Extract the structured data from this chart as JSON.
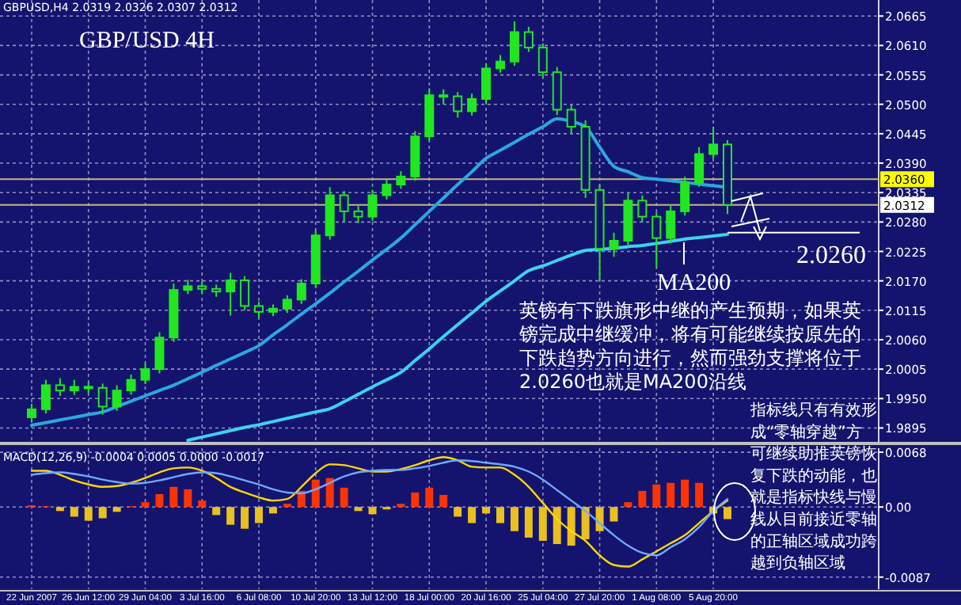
{
  "chart_data": [
    {
      "type": "candlestick",
      "title": "GBP/USD 4H",
      "subtitle": "GBPUSD,H4 2.0319 2.0326 2.0307 2.0312",
      "color": "#22e622",
      "tick_labels": "y",
      "grid": true,
      "categories": [
        null,
        null,
        null,
        null,
        null,
        null,
        null,
        null,
        null,
        null,
        null,
        null,
        null,
        null,
        null,
        null,
        null,
        null,
        null,
        null,
        null,
        null,
        null,
        null,
        null,
        null,
        null,
        null,
        null,
        null,
        null,
        null,
        null,
        null,
        null,
        null,
        null,
        null,
        null,
        null,
        null,
        null,
        null,
        null,
        null,
        null,
        null,
        null,
        null,
        null
      ],
      "ohlc": [
        [
          1.9915,
          1.994,
          1.9905,
          1.993
        ],
        [
          1.993,
          1.9985,
          1.9922,
          1.9975
        ],
        [
          1.9975,
          1.9988,
          1.9955,
          1.9965
        ],
        [
          1.9965,
          1.9985,
          1.9957,
          1.9972
        ],
        [
          1.9972,
          1.998,
          1.996,
          1.997
        ],
        [
          1.997,
          1.9978,
          1.992,
          1.9935
        ],
        [
          1.9935,
          1.9975,
          1.9927,
          1.9965
        ],
        [
          1.9965,
          1.9995,
          1.9957,
          1.9985
        ],
        [
          1.9985,
          2.0015,
          1.9977,
          2.0005
        ],
        [
          2.0005,
          2.0074,
          1.9997,
          2.0064
        ],
        [
          2.0064,
          2.0165,
          2.0056,
          2.0153
        ],
        [
          2.0153,
          2.0172,
          2.0145,
          2.016
        ],
        [
          2.016,
          2.0168,
          2.0147,
          2.0155
        ],
        [
          2.0155,
          2.0163,
          2.014,
          2.015
        ],
        [
          2.015,
          2.0185,
          2.0105,
          2.0171
        ],
        [
          2.0171,
          2.0179,
          2.0115,
          2.0123
        ],
        [
          2.0123,
          2.0131,
          2.01,
          2.0112
        ],
        [
          2.0112,
          2.0126,
          2.0104,
          2.0118
        ],
        [
          2.0118,
          2.0143,
          2.011,
          2.0135
        ],
        [
          2.0135,
          2.0173,
          2.0127,
          2.0165
        ],
        [
          2.0165,
          2.0265,
          2.0157,
          2.0255
        ],
        [
          2.0255,
          2.0345,
          2.0247,
          2.033
        ],
        [
          2.033,
          2.0338,
          2.028,
          2.03
        ],
        [
          2.03,
          2.031,
          2.0278,
          2.029
        ],
        [
          2.029,
          2.034,
          2.0282,
          2.033
        ],
        [
          2.033,
          2.036,
          2.0322,
          2.035
        ],
        [
          2.035,
          2.0375,
          2.0342,
          2.0365
        ],
        [
          2.0365,
          2.045,
          2.0357,
          2.044
        ],
        [
          2.044,
          2.053,
          2.0432,
          2.0517
        ],
        [
          2.0517,
          2.0528,
          2.05,
          2.0515
        ],
        [
          2.0515,
          2.0523,
          2.0475,
          2.0487
        ],
        [
          2.0487,
          2.052,
          2.0479,
          2.051
        ],
        [
          2.051,
          2.0577,
          2.0502,
          2.0567
        ],
        [
          2.0567,
          2.0592,
          2.0559,
          2.058
        ],
        [
          2.058,
          2.0655,
          2.0572,
          2.0635
        ],
        [
          2.0635,
          2.0645,
          2.0598,
          2.0606
        ],
        [
          2.0606,
          2.0614,
          2.055,
          2.056
        ],
        [
          2.056,
          2.057,
          2.048,
          2.049
        ],
        [
          2.049,
          2.05,
          2.0445,
          2.0458
        ],
        [
          2.0458,
          2.047,
          2.0325,
          2.034
        ],
        [
          2.034,
          2.035,
          2.017,
          2.023
        ],
        [
          2.023,
          2.026,
          2.0215,
          2.0245
        ],
        [
          2.0245,
          2.0335,
          2.0237,
          2.032
        ],
        [
          2.032,
          2.033,
          2.028,
          2.029
        ],
        [
          2.029,
          2.0298,
          2.0195,
          2.025
        ],
        [
          2.025,
          2.031,
          2.0242,
          2.03
        ],
        [
          2.03,
          2.0365,
          2.0292,
          2.0354
        ],
        [
          2.0354,
          2.042,
          2.0346,
          2.0407
        ],
        [
          2.0407,
          2.0458,
          2.0399,
          2.0425
        ],
        [
          2.0425,
          2.0433,
          2.0295,
          2.0312
        ]
      ],
      "series": [
        {
          "type": "line",
          "color": "#2aa8e0",
          "values": [
            1.99,
            1.9905,
            1.991,
            1.9915,
            1.992,
            1.9925,
            1.9935,
            1.9945,
            1.9955,
            1.9965,
            1.9975,
            1.9987,
            1.9999,
            2.0012,
            2.0024,
            2.0036,
            2.0049,
            2.0069,
            2.0088,
            2.0108,
            2.0127,
            2.0147,
            2.0168,
            2.0188,
            2.0209,
            2.0229,
            2.025,
            2.0275,
            2.03,
            2.0325,
            2.035,
            2.0374,
            2.0399,
            2.0414,
            2.0429,
            2.0444,
            2.0458,
            2.0473,
            2.0468,
            2.0458,
            2.042,
            2.0384,
            2.0374,
            2.0363,
            2.036,
            2.0357,
            2.0354,
            2.0351,
            2.0348,
            2.0345
          ]
        },
        {
          "type": "line",
          "color": "#3cd2f0",
          "values": [
            null,
            null,
            null,
            null,
            null,
            null,
            null,
            null,
            null,
            null,
            null,
            1.9872,
            1.9878,
            1.9884,
            1.989,
            1.9896,
            1.9901,
            1.9907,
            1.9913,
            1.9919,
            1.9925,
            1.9931,
            1.9944,
            1.9958,
            1.9972,
            1.9985,
            1.9999,
            2.0021,
            2.0043,
            2.0066,
            2.0088,
            2.011,
            2.0132,
            2.0151,
            2.017,
            2.0189,
            2.0198,
            2.0208,
            2.0218,
            2.0227,
            2.0229,
            2.0231,
            2.0234,
            2.0236,
            2.024,
            2.0244,
            2.0248,
            2.0251,
            2.0254,
            2.0257
          ]
        }
      ],
      "ylim": [
        1.9869,
        2.0695
      ],
      "yticks": [
        2.0665,
        {
          "value": 2.061,
          "label": "2.0610"
        },
        2.0555,
        {
          "value": 2.05,
          "label": "2.0500"
        },
        2.0445,
        {
          "value": 2.039,
          "label": "2.0390"
        },
        2.0335,
        {
          "value": 2.028,
          "label": "2.0280"
        },
        2.0225,
        {
          "value": 2.017,
          "label": "2.0170"
        },
        2.0115,
        {
          "value": 2.006,
          "label": "2.0060"
        },
        2.0005,
        {
          "value": 1.995,
          "label": "1.9950"
        },
        1.9895
      ],
      "ref_lines": [
        {
          "axis": "y",
          "value": 2.036,
          "label": "2.0360",
          "color": "#c8b482"
        },
        {
          "axis": "y",
          "value": 2.0312,
          "label": "2.0312",
          "color": "#c8b482"
        },
        {
          "axis": "y",
          "value": 2.026,
          "label": "2.0260",
          "color": "#ffffff"
        }
      ],
      "annotations": [
        "MA200",
        "英镑有下跌旗形中继的产生预期，如果英镑完成中继缓冲，将有可能继续按原先的下跌趋势方向进行，然而强劲支撑将位于2.0260也就是MA200沿线",
        "指标线只有有效形成“零轴穿越”方可继续助推英镑恢复下跌的动能，也就是指标快线与慢线从目前接近零轴的正轴区域成功跨越到负轴区域"
      ]
    },
    {
      "type": "bar",
      "title": "MACD(12,26,9) -0.0004 0.0005 0.0000 -0.0017",
      "grid": true,
      "categories": [
        "22 Jun 2007",
        null,
        null,
        null,
        "26 Jun 12:00",
        null,
        null,
        null,
        "29 Jun 04:00",
        null,
        null,
        null,
        "3 Jul 16:00",
        null,
        null,
        null,
        "6 Jul 08:00",
        null,
        null,
        null,
        "10 Jul 20:00",
        null,
        null,
        null,
        "13 Jul 12:00",
        null,
        null,
        null,
        "18 Jul 00:00",
        null,
        null,
        null,
        "20 Jul 16:00",
        null,
        null,
        null,
        "25 Jul 04:00",
        null,
        null,
        null,
        "27 Jul 20:00",
        null,
        null,
        null,
        "1 Aug 08:00",
        null,
        null,
        null,
        "5 Aug 20:00",
        null
      ],
      "series": [
        {
          "values": [
            0.0002,
            0.0001,
            -0.0005,
            -0.0012,
            -0.0017,
            -0.0014,
            -0.0006,
            0.0001,
            0.0006,
            0.0016,
            0.0025,
            0.0022,
            0.0008,
            -0.001,
            -0.0022,
            -0.0027,
            -0.002,
            -0.0008,
            0.0004,
            0.002,
            0.0034,
            0.0036,
            0.0024,
            -0.0005,
            -0.0009,
            -0.0003,
            0.0004,
            0.0018,
            0.0024,
            0.0015,
            -0.0012,
            -0.002,
            -0.0008,
            -0.002,
            -0.003,
            -0.0038,
            -0.0042,
            -0.0046,
            -0.0048,
            -0.004,
            -0.003,
            -0.0018,
            0.0006,
            0.002,
            0.0028,
            0.003,
            0.0034,
            0.003,
            -0.0008,
            -0.0015
          ],
          "colors": [
            "#ff3300",
            "#ff3300",
            "#e8c020",
            "#e8c020",
            "#e8c020",
            "#e8c020",
            "#e8c020",
            "#ff3300",
            "#ff3300",
            "#ff3300",
            "#ff3300",
            "#ff3300",
            "#ff3300",
            "#e8c020",
            "#e8c020",
            "#e8c020",
            "#e8c020",
            "#e8c020",
            "#ff3300",
            "#ff3300",
            "#ff3300",
            "#ff3300",
            "#ff3300",
            "#e8c020",
            "#e8c020",
            "#e8c020",
            "#ff3300",
            "#ff3300",
            "#ff3300",
            "#ff3300",
            "#e8c020",
            "#e8c020",
            "#e8c020",
            "#e8c020",
            "#e8c020",
            "#e8c020",
            "#e8c020",
            "#e8c020",
            "#e8c020",
            "#e8c020",
            "#e8c020",
            "#e8c020",
            "#ff3300",
            "#ff3300",
            "#ff3300",
            "#ff3300",
            "#ff3300",
            "#ff3300",
            "#e8c020",
            "#e8c020"
          ]
        },
        {
          "type": "line",
          "color": "#ffd700",
          "values": [
            0.0045,
            0.0045,
            0.004,
            0.0033,
            0.0028,
            0.0025,
            0.0026,
            0.003,
            0.0036,
            0.0043,
            0.0048,
            0.0049,
            0.0045,
            0.0036,
            0.0025,
            0.0018,
            0.0012,
            0.0008,
            0.001,
            0.0025,
            0.0042,
            0.0053,
            0.0052,
            0.0048,
            0.0044,
            0.0044,
            0.0047,
            0.0052,
            0.0058,
            0.0062,
            0.0058,
            0.005,
            0.0049,
            0.0049,
            0.004,
            0.0025,
            0.0005,
            -0.0015,
            -0.003,
            -0.0042,
            -0.006,
            -0.0072,
            -0.0074,
            -0.0065,
            -0.0055,
            -0.0045,
            -0.0035,
            -0.002,
            -0.0005,
            0.0008
          ]
        },
        {
          "type": "line",
          "color": "#6fa8ff",
          "values": [
            0.004,
            0.0042,
            0.0043,
            0.0041,
            0.0038,
            0.0034,
            0.0031,
            0.0029,
            0.003,
            0.0033,
            0.0037,
            0.0041,
            0.0043,
            0.0042,
            0.0038,
            0.0033,
            0.0028,
            0.0022,
            0.0018,
            0.0017,
            0.0022,
            0.003,
            0.0038,
            0.0043,
            0.0045,
            0.0046,
            0.0046,
            0.0048,
            0.0051,
            0.0055,
            0.0058,
            0.0057,
            0.0055,
            0.0053,
            0.005,
            0.0044,
            0.0034,
            0.0021,
            0.0008,
            -0.0005,
            -0.002,
            -0.0035,
            -0.0048,
            -0.0057,
            -0.006,
            -0.005,
            -0.004,
            -0.0025,
            -0.0005,
            0.001
          ]
        }
      ],
      "ylim": [
        -0.0102,
        0.0073
      ],
      "yticks": [
        0.0068,
        {
          "value": 0,
          "label": "0.00"
        },
        -0.0087
      ]
    }
  ]
}
